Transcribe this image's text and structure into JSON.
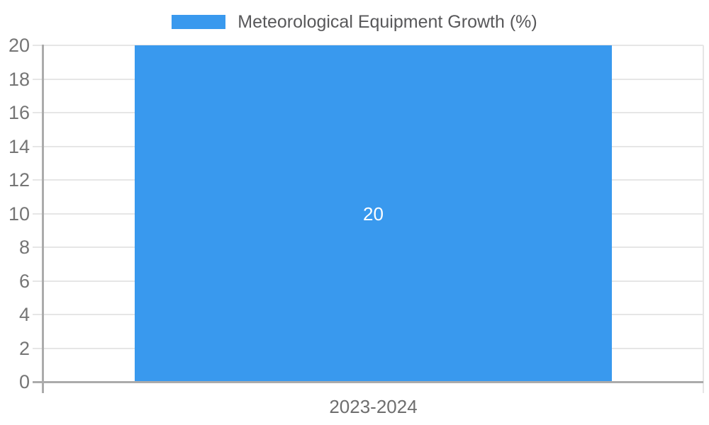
{
  "chart_data": {
    "type": "bar",
    "title": "Meteorological Equipment Growth (%)",
    "categories": [
      "2023-2024"
    ],
    "values": [
      20
    ],
    "bar_label": "20",
    "xlabel": "",
    "ylabel": "",
    "ylim": [
      0,
      20
    ],
    "yticks": [
      0,
      2,
      4,
      6,
      8,
      10,
      12,
      14,
      16,
      18,
      20
    ],
    "grid": true,
    "legend": {
      "position": "top",
      "entries": [
        "Meteorological Equipment Growth (%)"
      ]
    },
    "colors": {
      "bar": "#3999EE",
      "grid_line": "#E6E6E6",
      "axis_line": "#ABABAB",
      "tick_text": "#757575",
      "x_tick_text": "#6E6E6E",
      "legend_text": "#58585A",
      "bar_value_text": "#FFFFFF",
      "background": "#FFFFFF"
    }
  }
}
